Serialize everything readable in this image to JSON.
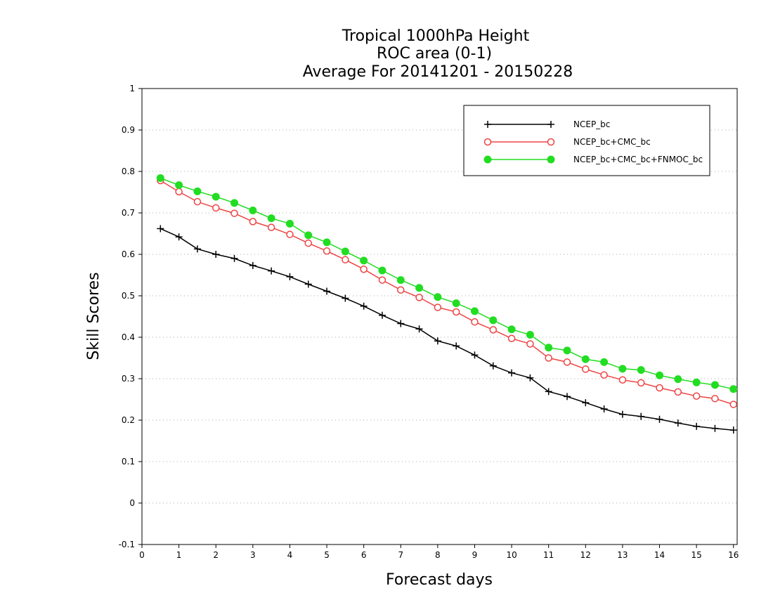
{
  "chart_data": {
    "type": "line",
    "title_lines": [
      "Tropical 1000hPa Height",
      "ROC area (0-1)",
      "Average For 20141201 - 20150228"
    ],
    "xlabel": "Forecast days",
    "ylabel": "Skill Scores",
    "xlim": [
      0,
      16.1
    ],
    "ylim": [
      -0.1,
      1
    ],
    "xticks": [
      0,
      1,
      2,
      3,
      4,
      5,
      6,
      7,
      8,
      9,
      10,
      11,
      12,
      13,
      14,
      15,
      16
    ],
    "yticks": [
      -0.1,
      0,
      0.1,
      0.2,
      0.3,
      0.4,
      0.5,
      0.6,
      0.7,
      0.8,
      0.9,
      1
    ],
    "ytick_labels": [
      "-0.1",
      "0",
      "0.1",
      "0.2",
      "0.3",
      "0.4",
      "0.5",
      "0.6",
      "0.7",
      "0.8",
      "0.9",
      "1"
    ],
    "grid": "horizontal dotted",
    "legend_position": "top-right",
    "x": [
      0.5,
      1,
      1.5,
      2,
      2.5,
      3,
      3.5,
      4,
      4.5,
      5,
      5.5,
      6,
      6.5,
      7,
      7.5,
      8,
      8.5,
      9,
      9.5,
      10,
      10.5,
      11,
      11.5,
      12,
      12.5,
      13,
      13.5,
      14,
      14.5,
      15,
      15.5,
      16
    ],
    "series": [
      {
        "name": "NCEP_bc",
        "color": "#000000",
        "marker": "plus",
        "values": [
          0.662,
          0.642,
          0.613,
          0.6,
          0.59,
          0.573,
          0.56,
          0.546,
          0.528,
          0.511,
          0.494,
          0.475,
          0.453,
          0.433,
          0.42,
          0.391,
          0.379,
          0.357,
          0.331,
          0.314,
          0.302,
          0.269,
          0.257,
          0.242,
          0.227,
          0.214,
          0.209,
          0.202,
          0.193,
          0.185,
          0.18,
          0.176
        ]
      },
      {
        "name": "NCEP_bc+CMC_bc",
        "color": "#ee4444",
        "marker": "open-circle",
        "values": [
          0.778,
          0.751,
          0.727,
          0.712,
          0.699,
          0.679,
          0.665,
          0.648,
          0.627,
          0.608,
          0.587,
          0.564,
          0.538,
          0.514,
          0.496,
          0.472,
          0.461,
          0.437,
          0.418,
          0.397,
          0.384,
          0.35,
          0.34,
          0.323,
          0.309,
          0.297,
          0.29,
          0.278,
          0.268,
          0.258,
          0.252,
          0.238
        ]
      },
      {
        "name": "NCEP_bc+CMC_bc+FNMOC_bc",
        "color": "#22dd22",
        "marker": "filled-circle",
        "values": [
          0.784,
          0.767,
          0.752,
          0.739,
          0.724,
          0.706,
          0.687,
          0.674,
          0.646,
          0.629,
          0.607,
          0.585,
          0.561,
          0.538,
          0.519,
          0.497,
          0.482,
          0.463,
          0.441,
          0.419,
          0.406,
          0.375,
          0.368,
          0.347,
          0.34,
          0.324,
          0.321,
          0.308,
          0.299,
          0.291,
          0.285,
          0.275
        ]
      }
    ]
  }
}
